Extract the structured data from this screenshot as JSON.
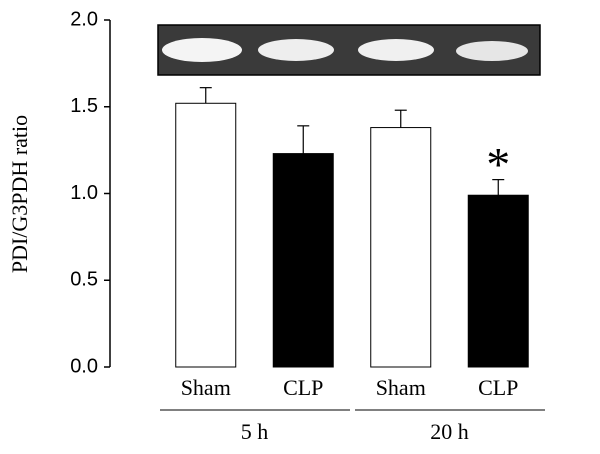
{
  "chart_data": {
    "type": "bar",
    "ylabel": "PDI/G3PDH ratio",
    "ylim": [
      0,
      2
    ],
    "yticks": [
      {
        "value": 0,
        "label": "0.0"
      },
      {
        "value": 0.5,
        "label": "0.5"
      },
      {
        "value": 1,
        "label": "1.0"
      },
      {
        "value": 1.5,
        "label": "1.5"
      },
      {
        "value": 2,
        "label": "2.0"
      }
    ],
    "groups": [
      {
        "label": "5 h",
        "categories": [
          "Sham",
          "CLP"
        ],
        "values": [
          1.52,
          1.23
        ],
        "errors": [
          0.09,
          0.16
        ],
        "colors": [
          "#ffffff",
          "#000000"
        ]
      },
      {
        "label": "20 h",
        "categories": [
          "Sham",
          "CLP"
        ],
        "values": [
          1.38,
          0.99
        ],
        "errors": [
          0.1,
          0.09
        ],
        "colors": [
          "#ffffff",
          "#000000"
        ],
        "annotations": [
          null,
          "*"
        ]
      }
    ]
  }
}
